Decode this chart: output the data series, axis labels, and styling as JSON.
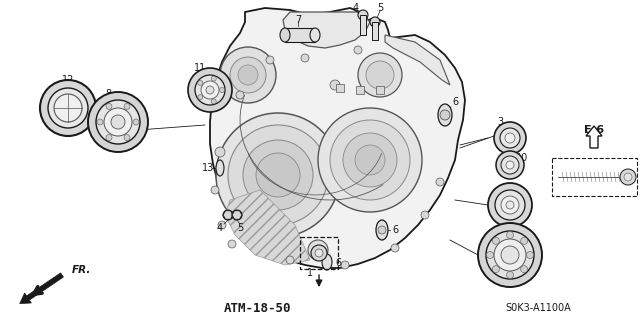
{
  "bg_color": "#ffffff",
  "fig_width": 6.4,
  "fig_height": 3.19,
  "dpi": 100,
  "bottom_label": "ATM-18-50",
  "ref_code": "S0K3-A1100A",
  "dark": "#1a1a1a",
  "gray": "#555555",
  "lgray": "#888888",
  "body_fill": "#f2f2f2",
  "bearing_fill": "#e0e0e0",
  "inner_fill": "#c8c8c8"
}
